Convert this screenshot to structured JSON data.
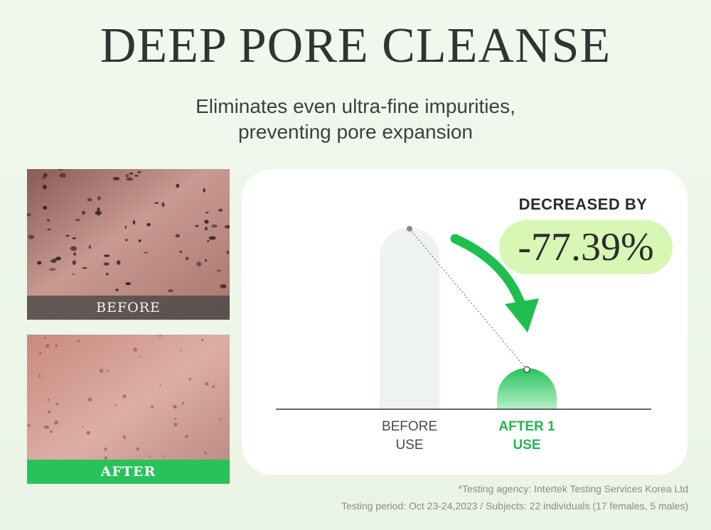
{
  "header": {
    "title": "DEEP PORE CLEANSE",
    "subtitle_line1": "Eliminates even ultra-fine impurities,",
    "subtitle_line2": "preventing pore expansion"
  },
  "photos": {
    "before_label": "BEFORE",
    "after_label": "AFTER"
  },
  "badge": {
    "title": "DECREASED BY",
    "value": "-77.39%"
  },
  "chart_data": {
    "type": "bar",
    "categories": [
      "BEFORE USE",
      "AFTER 1 USE"
    ],
    "category_lines": [
      [
        "BEFORE",
        "USE"
      ],
      [
        "AFTER 1",
        "USE"
      ]
    ],
    "values": [
      100,
      22.61
    ],
    "ylim": [
      0,
      100
    ],
    "grid": false,
    "colors": {
      "before_bar": "#eef2f1",
      "after_bar_top": "#28c25c",
      "after_bar_bottom": "#b6efc6",
      "arrow": "#1fbf4f",
      "after_label": "#22b552"
    }
  },
  "footnotes": {
    "agency": "*Testing agency: Intertek Testing Services Korea Ltd",
    "period": "Testing period: Oct 23-24,2023 / Subjects: 22 individuals (17 females, 5 males)"
  }
}
